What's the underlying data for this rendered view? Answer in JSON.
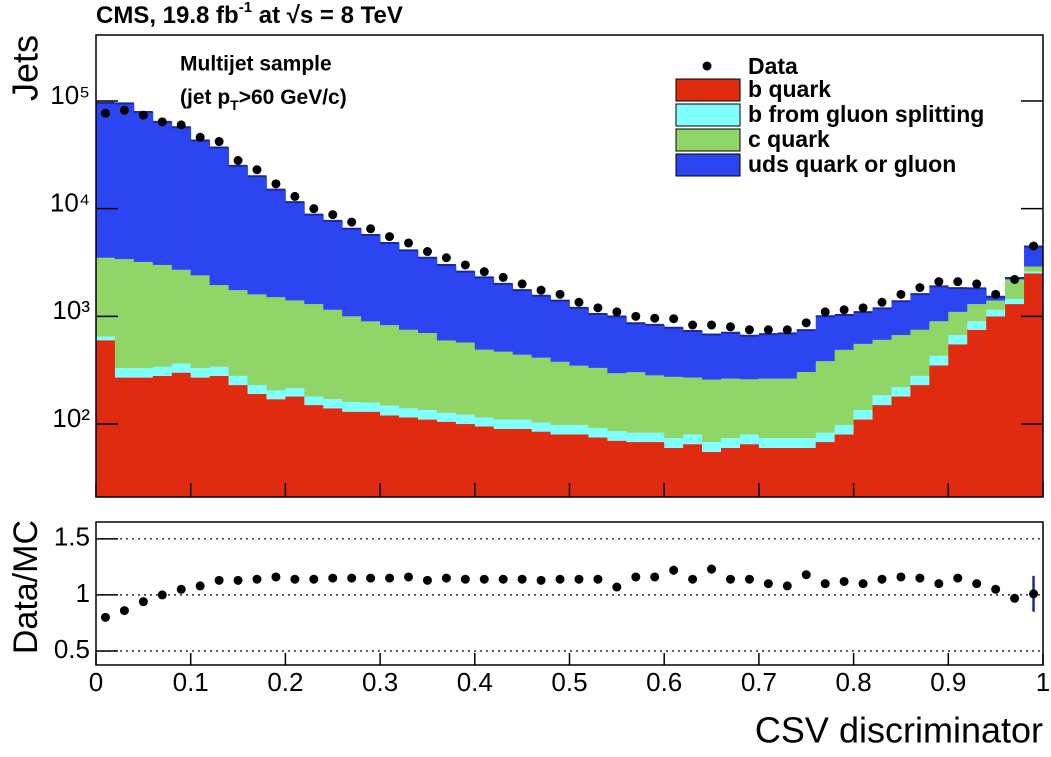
{
  "chart_data": [
    {
      "type": "stacked_histogram",
      "title": "CMS, 19.8 fb",
      "title_sup": "-1",
      "title_rest": " at √s = 8 TeV",
      "annotation_1": "Multijet sample",
      "annotation_2": "(jet p",
      "annotation_2_sub": "T",
      "annotation_2_rest": ">60 GeV/c)",
      "ylabel": "Jets",
      "log_y": true,
      "bins": [
        0,
        0.02,
        0.04,
        0.06,
        0.08,
        0.1,
        0.12,
        0.14,
        0.16,
        0.18,
        0.2,
        0.22,
        0.24,
        0.26,
        0.28,
        0.3,
        0.32,
        0.34,
        0.36,
        0.38,
        0.4,
        0.42,
        0.44,
        0.46,
        0.48,
        0.5,
        0.52,
        0.54,
        0.56,
        0.58,
        0.6,
        0.62,
        0.64,
        0.66,
        0.68,
        0.7,
        0.72,
        0.74,
        0.76,
        0.78,
        0.8,
        0.82,
        0.84,
        0.86,
        0.88,
        0.9,
        0.92,
        0.94,
        0.96,
        0.98,
        1
      ],
      "xlim": [
        0,
        1
      ],
      "ylim": [
        21,
        410000
      ],
      "yticks": [
        {
          "value": 100,
          "label": "10²"
        },
        {
          "value": 1000,
          "label": "10³"
        },
        {
          "value": 10000,
          "label": "10⁴"
        },
        {
          "value": 100000,
          "label": "10⁵"
        }
      ],
      "data": {
        "name": "Data",
        "color": "#000000",
        "values": [
          77000,
          82000,
          74000,
          64000,
          60000,
          46000,
          42000,
          28000,
          23000,
          17000,
          13000,
          10000,
          8800,
          7500,
          6500,
          5500,
          4800,
          4000,
          3500,
          3000,
          2600,
          2300,
          2000,
          1750,
          1600,
          1350,
          1200,
          1100,
          1000,
          960,
          950,
          830,
          830,
          800,
          750,
          750,
          750,
          870,
          1100,
          1150,
          1200,
          1350,
          1600,
          1850,
          2100,
          2100,
          2000,
          1600,
          2200,
          4500
        ]
      },
      "series": [
        {
          "name": "b quark",
          "color": "#df2b0f",
          "values": [
            600,
            270,
            270,
            280,
            300,
            270,
            280,
            230,
            190,
            170,
            180,
            150,
            140,
            130,
            130,
            120,
            115,
            110,
            105,
            100,
            95,
            90,
            90,
            85,
            80,
            80,
            75,
            70,
            68,
            68,
            60,
            65,
            55,
            60,
            65,
            60,
            60,
            60,
            68,
            80,
            110,
            150,
            180,
            230,
            350,
            550,
            750,
            1000,
            1300,
            2500
          ]
        },
        {
          "name": "b from gluon splitting",
          "color": "#80ffff",
          "values": [
            50,
            60,
            60,
            60,
            65,
            60,
            60,
            50,
            40,
            35,
            35,
            30,
            30,
            30,
            28,
            28,
            25,
            25,
            22,
            22,
            20,
            20,
            20,
            18,
            18,
            18,
            17,
            16,
            15,
            15,
            14,
            15,
            13,
            14,
            15,
            14,
            14,
            14,
            15,
            18,
            25,
            35,
            40,
            50,
            80,
            120,
            150,
            150,
            150,
            100
          ]
        },
        {
          "name": "c quark",
          "color": "#8fd567",
          "values": [
            2850,
            3070,
            2870,
            2660,
            2340,
            2070,
            1610,
            1470,
            1370,
            1300,
            1190,
            1120,
            980,
            840,
            740,
            680,
            610,
            565,
            470,
            450,
            375,
            360,
            330,
            310,
            280,
            250,
            240,
            210,
            220,
            200,
            200,
            190,
            190,
            190,
            180,
            190,
            190,
            230,
            300,
            390,
            420,
            420,
            450,
            470,
            470,
            430,
            400,
            250,
            750,
            300
          ]
        },
        {
          "name": "uds quark or gluon",
          "color": "#2b45f0",
          "values": [
            92500,
            91600,
            75800,
            61000,
            54300,
            40600,
            35000,
            23200,
            18400,
            13500,
            10100,
            7500,
            6550,
            5500,
            4800,
            3970,
            3350,
            2800,
            2400,
            2030,
            1810,
            1530,
            1310,
            1140,
            1020,
            850,
            720,
            700,
            560,
            550,
            510,
            460,
            420,
            440,
            400,
            420,
            430,
            440,
            620,
            540,
            540,
            580,
            710,
            860,
            1000,
            730,
            520,
            120,
            70,
            1550
          ]
        }
      ]
    },
    {
      "type": "errorbar",
      "ylabel": "Data/MC",
      "xlabel": "CSV discriminator",
      "color": "#000000",
      "error_color": "#1a2a9a",
      "grid": true,
      "x": [
        0.01,
        0.03,
        0.05,
        0.07,
        0.09,
        0.11,
        0.13,
        0.15,
        0.17,
        0.19,
        0.21,
        0.23,
        0.25,
        0.27,
        0.29,
        0.31,
        0.33,
        0.35,
        0.37,
        0.39,
        0.41,
        0.43,
        0.45,
        0.47,
        0.49,
        0.51,
        0.53,
        0.55,
        0.57,
        0.59,
        0.61,
        0.63,
        0.65,
        0.67,
        0.69,
        0.71,
        0.73,
        0.75,
        0.77,
        0.79,
        0.81,
        0.83,
        0.85,
        0.87,
        0.89,
        0.91,
        0.93,
        0.95,
        0.97,
        0.99
      ],
      "values": [
        0.8,
        0.86,
        0.94,
        1,
        1.05,
        1.08,
        1.13,
        1.13,
        1.14,
        1.16,
        1.14,
        1.14,
        1.15,
        1.15,
        1.15,
        1.15,
        1.16,
        1.13,
        1.15,
        1.14,
        1.14,
        1.14,
        1.14,
        1.13,
        1.14,
        1.14,
        1.14,
        1.07,
        1.16,
        1.16,
        1.22,
        1.14,
        1.23,
        1.14,
        1.14,
        1.1,
        1.08,
        1.18,
        1.1,
        1.12,
        1.1,
        1.14,
        1.16,
        1.15,
        1.1,
        1.15,
        1.1,
        1.05,
        0.97,
        1.01
      ],
      "errors": [
        0.01,
        0.01,
        0.01,
        0.01,
        0.01,
        0.01,
        0.01,
        0.01,
        0.01,
        0.01,
        0.01,
        0.01,
        0.01,
        0.01,
        0.01,
        0.01,
        0.01,
        0.01,
        0.01,
        0.01,
        0.01,
        0.01,
        0.01,
        0.01,
        0.01,
        0.01,
        0.01,
        0.01,
        0.01,
        0.03,
        0.04,
        0.03,
        0.04,
        0.03,
        0.03,
        0.03,
        0.03,
        0.03,
        0.03,
        0.01,
        0.01,
        0.01,
        0.01,
        0.01,
        0.01,
        0.01,
        0.01,
        0.01,
        0.01,
        0.16
      ],
      "xlim": [
        0,
        1
      ],
      "ylim": [
        0.375,
        1.65
      ],
      "xticks": [
        0,
        0.1,
        0.2,
        0.3,
        0.4,
        0.5,
        0.6,
        0.7,
        0.8,
        0.9,
        1
      ],
      "yticks": [
        0.5,
        1,
        1.5
      ]
    }
  ]
}
